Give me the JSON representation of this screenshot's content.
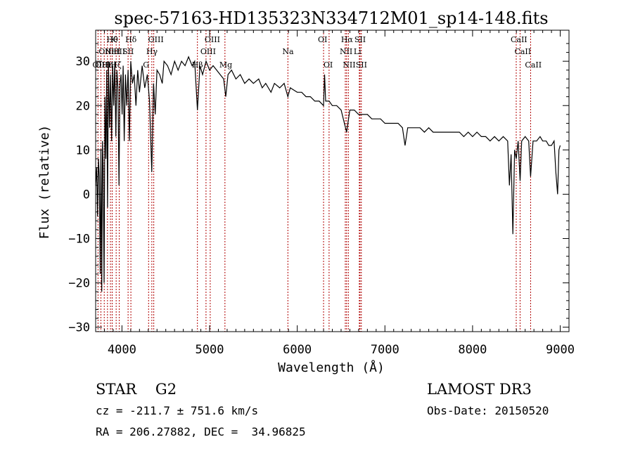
{
  "chart_data": {
    "type": "line",
    "title": "spec-57163-HD135323N334712M01_sp14-148.fits",
    "xlabel": "Wavelength (Å)",
    "ylabel": "Flux (relative)",
    "xlim": [
      3700,
      9100
    ],
    "ylim": [
      -31,
      37
    ],
    "xticks": [
      4000,
      5000,
      6000,
      7000,
      8000,
      9000
    ],
    "yticks": [
      -30,
      -20,
      -10,
      0,
      10,
      20,
      30
    ],
    "grid": false,
    "series": [
      {
        "points": [
          [
            3700,
            2
          ],
          [
            3712,
            6
          ],
          [
            3722,
            -5
          ],
          [
            3732,
            8
          ],
          [
            3742,
            4
          ],
          [
            3752,
            -18
          ],
          [
            3760,
            10
          ],
          [
            3770,
            -22
          ],
          [
            3778,
            12
          ],
          [
            3786,
            6
          ],
          [
            3796,
            -20
          ],
          [
            3806,
            22
          ],
          [
            3816,
            8
          ],
          [
            3826,
            28
          ],
          [
            3836,
            -3
          ],
          [
            3846,
            30
          ],
          [
            3858,
            15
          ],
          [
            3870,
            27
          ],
          [
            3882,
            12
          ],
          [
            3894,
            29
          ],
          [
            3906,
            20
          ],
          [
            3918,
            30
          ],
          [
            3930,
            13
          ],
          [
            3942,
            28
          ],
          [
            3954,
            24
          ],
          [
            3966,
            2
          ],
          [
            3978,
            25
          ],
          [
            3990,
            27
          ],
          [
            4002,
            18
          ],
          [
            4014,
            29
          ],
          [
            4026,
            12
          ],
          [
            4040,
            27
          ],
          [
            4055,
            20
          ],
          [
            4070,
            28
          ],
          [
            4085,
            12
          ],
          [
            4100,
            30
          ],
          [
            4120,
            25
          ],
          [
            4140,
            27
          ],
          [
            4160,
            20
          ],
          [
            4180,
            28
          ],
          [
            4200,
            23
          ],
          [
            4230,
            29
          ],
          [
            4260,
            24
          ],
          [
            4290,
            27
          ],
          [
            4315,
            21
          ],
          [
            4340,
            5
          ],
          [
            4360,
            25
          ],
          [
            4380,
            18
          ],
          [
            4400,
            28
          ],
          [
            4430,
            27
          ],
          [
            4460,
            25
          ],
          [
            4480,
            30
          ],
          [
            4520,
            29
          ],
          [
            4560,
            27
          ],
          [
            4600,
            30
          ],
          [
            4640,
            28
          ],
          [
            4680,
            30
          ],
          [
            4720,
            29
          ],
          [
            4760,
            31
          ],
          [
            4800,
            29
          ],
          [
            4830,
            30
          ],
          [
            4861,
            19
          ],
          [
            4890,
            29
          ],
          [
            4920,
            27
          ],
          [
            4960,
            30
          ],
          [
            5000,
            28
          ],
          [
            5040,
            29
          ],
          [
            5080,
            28
          ],
          [
            5120,
            27
          ],
          [
            5160,
            26
          ],
          [
            5184,
            22
          ],
          [
            5210,
            27
          ],
          [
            5250,
            28
          ],
          [
            5300,
            26
          ],
          [
            5350,
            27
          ],
          [
            5400,
            25
          ],
          [
            5450,
            26
          ],
          [
            5500,
            25
          ],
          [
            5560,
            26
          ],
          [
            5600,
            24
          ],
          [
            5640,
            25
          ],
          [
            5700,
            23
          ],
          [
            5740,
            25
          ],
          [
            5800,
            24
          ],
          [
            5850,
            25
          ],
          [
            5893,
            22
          ],
          [
            5920,
            24
          ],
          [
            6000,
            23
          ],
          [
            6050,
            23
          ],
          [
            6100,
            22
          ],
          [
            6150,
            22
          ],
          [
            6200,
            21
          ],
          [
            6250,
            21
          ],
          [
            6300,
            20
          ],
          [
            6312,
            27
          ],
          [
            6324,
            21
          ],
          [
            6363,
            21
          ],
          [
            6400,
            20
          ],
          [
            6450,
            20
          ],
          [
            6500,
            19
          ],
          [
            6563,
            14
          ],
          [
            6600,
            19
          ],
          [
            6650,
            19
          ],
          [
            6700,
            18
          ],
          [
            6750,
            18
          ],
          [
            6800,
            18
          ],
          [
            6850,
            17
          ],
          [
            6900,
            17
          ],
          [
            6950,
            17
          ],
          [
            7000,
            16
          ],
          [
            7050,
            16
          ],
          [
            7100,
            16
          ],
          [
            7150,
            16
          ],
          [
            7200,
            15
          ],
          [
            7230,
            11
          ],
          [
            7260,
            15
          ],
          [
            7300,
            15
          ],
          [
            7350,
            15
          ],
          [
            7400,
            15
          ],
          [
            7450,
            14
          ],
          [
            7500,
            15
          ],
          [
            7550,
            14
          ],
          [
            7600,
            14
          ],
          [
            7650,
            14
          ],
          [
            7700,
            14
          ],
          [
            7750,
            14
          ],
          [
            7800,
            14
          ],
          [
            7850,
            14
          ],
          [
            7900,
            13
          ],
          [
            7950,
            14
          ],
          [
            8000,
            13
          ],
          [
            8050,
            14
          ],
          [
            8100,
            13
          ],
          [
            8150,
            13
          ],
          [
            8200,
            12
          ],
          [
            8250,
            13
          ],
          [
            8300,
            12
          ],
          [
            8350,
            13
          ],
          [
            8400,
            12
          ],
          [
            8420,
            2
          ],
          [
            8440,
            9
          ],
          [
            8460,
            -9
          ],
          [
            8480,
            10
          ],
          [
            8498,
            8
          ],
          [
            8520,
            12
          ],
          [
            8542,
            3
          ],
          [
            8560,
            12
          ],
          [
            8600,
            13
          ],
          [
            8640,
            12
          ],
          [
            8662,
            4
          ],
          [
            8690,
            12
          ],
          [
            8730,
            12
          ],
          [
            8770,
            13
          ],
          [
            8800,
            12
          ],
          [
            8840,
            12
          ],
          [
            8870,
            11
          ],
          [
            8900,
            11
          ],
          [
            8930,
            12
          ],
          [
            8950,
            5
          ],
          [
            8970,
            0
          ],
          [
            8985,
            10
          ],
          [
            9000,
            11
          ]
        ]
      }
    ],
    "lines": [
      {
        "x": 3727,
        "rows": [
          {
            "label": "OII",
            "row": 2
          }
        ]
      },
      {
        "x": 3760,
        "rows": [
          {
            "label": "OIII",
            "row": 2
          }
        ]
      },
      {
        "x": 3798,
        "rows": [
          {
            "label": "OIII",
            "row": 1
          }
        ]
      },
      {
        "x": 3835,
        "rows": [
          {
            "label": "Hη",
            "row": 2
          }
        ]
      },
      {
        "x": 3869,
        "rows": [
          {
            "label": "NeIII",
            "row": 1
          }
        ]
      },
      {
        "x": 3889,
        "rows": [
          {
            "label": "Hθ",
            "row": 0
          }
        ]
      },
      {
        "x": 3934,
        "rows": [
          {
            "label": "Hζ",
            "row": 2
          },
          {
            "label": "K",
            "row": 0
          }
        ]
      },
      {
        "x": 3969,
        "rows": [
          {
            "label": "H",
            "row": 1
          }
        ]
      },
      {
        "x": 4070,
        "rows": [
          {
            "label": "SII",
            "row": 1
          }
        ]
      },
      {
        "x": 4102,
        "rows": [
          {
            "label": "Hδ",
            "row": 0
          }
        ]
      },
      {
        "x": 4304,
        "rows": [
          {
            "label": "G",
            "row": 2
          }
        ]
      },
      {
        "x": 4341,
        "rows": [
          {
            "label": "Hγ",
            "row": 1
          }
        ]
      },
      {
        "x": 4363,
        "rows": [
          {
            "label": "OIII",
            "row": 0
          }
        ]
      },
      {
        "x": 4861,
        "rows": [
          {
            "label": "Hβ",
            "row": 2
          }
        ]
      },
      {
        "x": 4959,
        "rows": [
          {
            "label": "OIII",
            "row": 1
          }
        ]
      },
      {
        "x": 5007,
        "rows": [
          {
            "label": "OIII",
            "row": 0
          }
        ]
      },
      {
        "x": 5175,
        "rows": [
          {
            "label": "Mg",
            "row": 2
          }
        ]
      },
      {
        "x": 5893,
        "rows": [
          {
            "label": "Na",
            "row": 1
          }
        ]
      },
      {
        "x": 6300,
        "rows": [
          {
            "label": "OI",
            "row": 0
          }
        ]
      },
      {
        "x": 6363,
        "rows": [
          {
            "label": "OI",
            "row": 2
          }
        ]
      },
      {
        "x": 6548,
        "rows": [
          {
            "label": "NII",
            "row": 1
          }
        ]
      },
      {
        "x": 6563,
        "rows": [
          {
            "label": "Hα",
            "row": 0
          }
        ]
      },
      {
        "x": 6583,
        "rows": [
          {
            "label": "NII",
            "row": 2
          }
        ]
      },
      {
        "x": 6708,
        "rows": [
          {
            "label": "Li",
            "row": 1
          }
        ]
      },
      {
        "x": 6716,
        "rows": [
          {
            "label": "SII",
            "row": 0
          }
        ]
      },
      {
        "x": 6731,
        "rows": [
          {
            "label": "SII",
            "row": 2
          }
        ]
      },
      {
        "x": 8498,
        "rows": [
          {
            "label": "CaII",
            "row": 0
          }
        ]
      },
      {
        "x": 8542,
        "rows": [
          {
            "label": "CaII",
            "row": 1
          }
        ]
      },
      {
        "x": 8662,
        "rows": [
          {
            "label": "CaII",
            "row": 2
          }
        ]
      }
    ]
  },
  "info": {
    "object": "STAR    G2",
    "survey": "LAMOST DR3",
    "cz": "cz = -211.7 ± 751.6 km/s",
    "obs_date": "Obs-Date: 20150520",
    "coords": "RA = 206.27882, DEC =  34.96825"
  }
}
